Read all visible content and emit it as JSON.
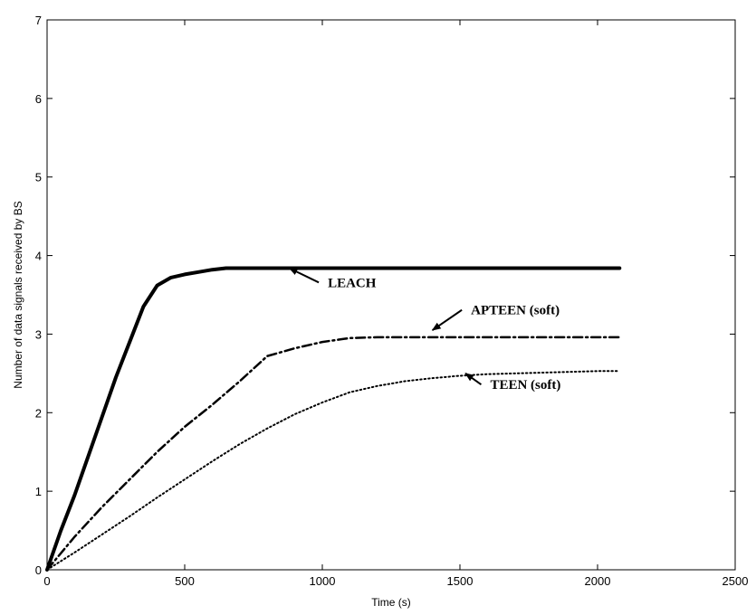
{
  "chart_data": {
    "type": "line",
    "title": "",
    "xlabel": "Time (s)",
    "ylabel": "Number of data signals received by BS",
    "xlim": [
      0,
      2500
    ],
    "ylim": [
      0,
      7
    ],
    "xticks": [
      0,
      500,
      1000,
      1500,
      2000,
      2500
    ],
    "yticks": [
      0,
      1,
      2,
      3,
      4,
      5,
      6,
      7
    ],
    "grid": false,
    "legend": "none",
    "series": [
      {
        "name": "LEACH",
        "style": "solid",
        "x": [
          0,
          50,
          100,
          150,
          200,
          250,
          300,
          350,
          400,
          450,
          500,
          550,
          600,
          650,
          700,
          800,
          1000,
          1500,
          2000,
          2080
        ],
        "y": [
          0,
          0.5,
          0.95,
          1.45,
          1.95,
          2.45,
          2.9,
          3.35,
          3.62,
          3.72,
          3.76,
          3.79,
          3.82,
          3.84,
          3.84,
          3.84,
          3.84,
          3.84,
          3.84,
          3.84
        ]
      },
      {
        "name": "APTEEN (soft)",
        "style": "dashdot",
        "x": [
          0,
          100,
          200,
          300,
          400,
          500,
          600,
          700,
          800,
          900,
          1000,
          1100,
          1200,
          1500,
          2000,
          2080
        ],
        "y": [
          0,
          0.42,
          0.8,
          1.15,
          1.5,
          1.82,
          2.1,
          2.4,
          2.72,
          2.82,
          2.9,
          2.95,
          2.96,
          2.96,
          2.96,
          2.96
        ]
      },
      {
        "name": "TEEN (soft)",
        "style": "dotted",
        "x": [
          0,
          100,
          200,
          300,
          400,
          500,
          600,
          700,
          800,
          900,
          1000,
          1100,
          1200,
          1300,
          1400,
          1500,
          1600,
          1800,
          2000,
          2080
        ],
        "y": [
          0,
          0.22,
          0.45,
          0.68,
          0.92,
          1.15,
          1.38,
          1.6,
          1.8,
          1.98,
          2.13,
          2.26,
          2.34,
          2.4,
          2.44,
          2.47,
          2.49,
          2.51,
          2.53,
          2.53
        ]
      }
    ],
    "annotations": [
      {
        "text": "LEACH",
        "x": 1020,
        "y": 3.6,
        "arrow_to": [
          880,
          3.84
        ]
      },
      {
        "text": "APTEEN (soft)",
        "x": 1540,
        "y": 3.25,
        "arrow_to": [
          1400,
          3.05
        ]
      },
      {
        "text": "TEEN (soft)",
        "x": 1610,
        "y": 2.3,
        "arrow_to": [
          1520,
          2.5
        ]
      }
    ]
  },
  "colors": {
    "line": "#000000",
    "axis": "#000000",
    "background": "#ffffff"
  }
}
